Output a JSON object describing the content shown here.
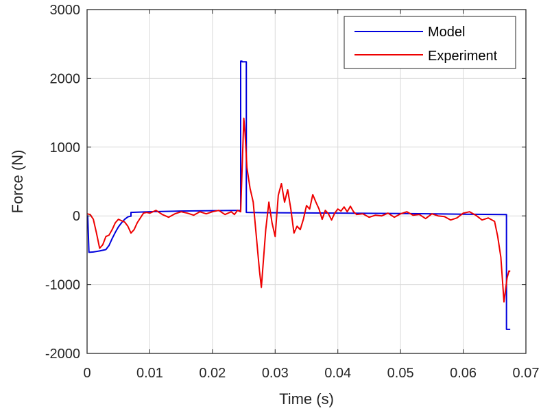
{
  "chart_data": {
    "type": "line",
    "title": "",
    "xlabel": "Time (s)",
    "ylabel": "Force (N)",
    "xlim": [
      0,
      0.07
    ],
    "ylim": [
      -2000,
      3000
    ],
    "grid": true,
    "legend_position": "top-right",
    "x_ticks": [
      0,
      0.01,
      0.02,
      0.03,
      0.04,
      0.05,
      0.06,
      0.07
    ],
    "x_tick_labels": [
      "0",
      "0.01",
      "0.02",
      "0.03",
      "0.04",
      "0.05",
      "0.06",
      "0.07"
    ],
    "y_ticks": [
      -2000,
      -1000,
      0,
      1000,
      2000,
      3000
    ],
    "y_tick_labels": [
      "-2000",
      "-1000",
      "0",
      "1000",
      "2000",
      "3000"
    ],
    "colors": {
      "axis": "#262626",
      "grid": "#d9d9d9"
    },
    "series": [
      {
        "name": "Model",
        "color": "#0000dd",
        "x": [
          0,
          0.0001,
          0.0003,
          0.001,
          0.002,
          0.003,
          0.0035,
          0.004,
          0.0045,
          0.005,
          0.0055,
          0.006,
          0.0065,
          0.0069,
          0.007,
          0.007,
          0.01,
          0.015,
          0.02,
          0.0245,
          0.0245,
          0.0247,
          0.0247,
          0.0254,
          0.0254,
          0.03,
          0.04,
          0.05,
          0.06,
          0.0669,
          0.0669,
          0.0675
        ],
        "y": [
          0,
          0,
          -530,
          -525,
          -510,
          -490,
          -430,
          -330,
          -240,
          -160,
          -100,
          -50,
          -15,
          -5,
          -5,
          50,
          60,
          70,
          75,
          80,
          2250,
          2250,
          2240,
          2240,
          50,
          45,
          40,
          35,
          25,
          20,
          -1650,
          -1650
        ]
      },
      {
        "name": "Experiment",
        "color": "#ee0000",
        "x": [
          0,
          0.0005,
          0.001,
          0.0015,
          0.002,
          0.0025,
          0.003,
          0.0035,
          0.004,
          0.0045,
          0.005,
          0.0055,
          0.006,
          0.0065,
          0.007,
          0.0075,
          0.008,
          0.0085,
          0.009,
          0.0095,
          0.01,
          0.011,
          0.012,
          0.013,
          0.014,
          0.015,
          0.016,
          0.017,
          0.018,
          0.019,
          0.02,
          0.021,
          0.022,
          0.023,
          0.0235,
          0.024,
          0.0245,
          0.025,
          0.0252,
          0.0255,
          0.026,
          0.0265,
          0.027,
          0.0275,
          0.0278,
          0.028,
          0.0285,
          0.029,
          0.0295,
          0.03,
          0.0305,
          0.031,
          0.0315,
          0.032,
          0.0325,
          0.033,
          0.0335,
          0.034,
          0.0345,
          0.035,
          0.0355,
          0.036,
          0.0365,
          0.037,
          0.0375,
          0.038,
          0.0385,
          0.039,
          0.0395,
          0.04,
          0.0405,
          0.041,
          0.0415,
          0.042,
          0.0425,
          0.043,
          0.044,
          0.045,
          0.046,
          0.047,
          0.048,
          0.049,
          0.05,
          0.051,
          0.052,
          0.053,
          0.054,
          0.055,
          0.056,
          0.057,
          0.058,
          0.059,
          0.06,
          0.061,
          0.062,
          0.063,
          0.064,
          0.065,
          0.0655,
          0.066,
          0.0665,
          0.067,
          0.0673,
          0.0675
        ],
        "y": [
          30,
          20,
          -50,
          -250,
          -470,
          -420,
          -300,
          -280,
          -200,
          -100,
          -50,
          -70,
          -90,
          -150,
          -250,
          -200,
          -100,
          -30,
          40,
          50,
          40,
          80,
          20,
          -20,
          30,
          60,
          40,
          10,
          60,
          30,
          60,
          80,
          20,
          60,
          20,
          80,
          60,
          1420,
          1200,
          700,
          400,
          200,
          -300,
          -800,
          -1040,
          -800,
          -200,
          200,
          -100,
          -300,
          300,
          470,
          200,
          380,
          100,
          -250,
          -150,
          -200,
          -50,
          150,
          100,
          310,
          200,
          100,
          -50,
          80,
          30,
          -60,
          40,
          100,
          70,
          130,
          60,
          140,
          60,
          20,
          30,
          -20,
          10,
          0,
          40,
          -20,
          30,
          60,
          10,
          20,
          -40,
          30,
          0,
          -10,
          -60,
          -30,
          40,
          60,
          10,
          -60,
          -30,
          -80,
          -300,
          -600,
          -1250,
          -900,
          -800,
          -810
        ]
      }
    ]
  }
}
